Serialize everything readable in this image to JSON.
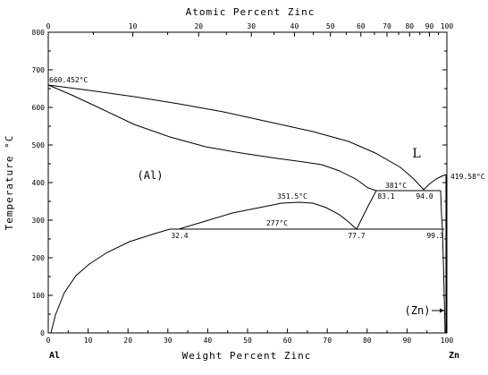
{
  "axes": {
    "top_title": "Atomic Percent Zinc",
    "bottom_title": "Weight Percent Zinc",
    "left_title": "Temperature °C",
    "left_ticks": [
      "0",
      "100",
      "200",
      "300",
      "400",
      "500",
      "600",
      "700",
      "800"
    ],
    "bottom_ticks": [
      "0",
      "10",
      "20",
      "30",
      "40",
      "50",
      "60",
      "70",
      "80",
      "90",
      "100"
    ],
    "top_ticks": [
      "0",
      "10",
      "20",
      "30",
      "40",
      "50",
      "60",
      "70",
      "80",
      "90",
      "100"
    ],
    "left_end_label": "Al",
    "right_end_label": "Zn"
  },
  "phases": {
    "liquid": "L",
    "al_solid": "(Al)",
    "zn_solid": "(Zn)"
  },
  "annotations": {
    "al_melting": "660.452°C",
    "zn_melting": "419.58°C",
    "eutectic_temp": "381°C",
    "monotectoid_top": "351.5°C",
    "eutectoid_temp": "277°C",
    "eutectic_al_side": "83.1",
    "eutectic_point": "94.0",
    "eutectoid_left": "32.4",
    "eutectoid_point": "77.7",
    "eutectoid_right": "99.3"
  },
  "colors": {
    "line": "#000000",
    "background": "#ffffff"
  }
}
